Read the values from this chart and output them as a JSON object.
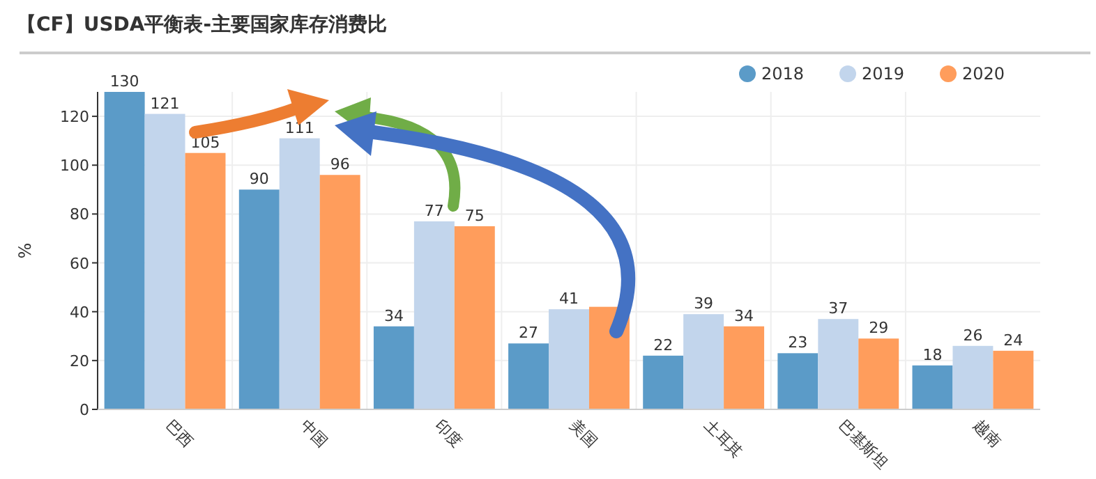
{
  "chart_data": {
    "type": "bar",
    "title": "【CF】USDA平衡表-主要国家库存消费比",
    "ylabel": "%",
    "categories": [
      "巴西",
      "中国",
      "印度",
      "美国",
      "土耳其",
      "巴基斯坦",
      "越南"
    ],
    "series": [
      {
        "name": "2018",
        "color": "#5b9bc8",
        "values": [
          130,
          90,
          34,
          27,
          22,
          23,
          18
        ]
      },
      {
        "name": "2019",
        "color": "#c2d5ec",
        "values": [
          121,
          111,
          77,
          41,
          39,
          37,
          26
        ]
      },
      {
        "name": "2020",
        "color": "#ff9d5c",
        "values": [
          105,
          96,
          75,
          42,
          34,
          29,
          24
        ],
        "value_labels": [
          "105",
          "96",
          "75",
          null,
          "34",
          "29",
          "24"
        ]
      }
    ],
    "ylim": [
      0,
      130
    ],
    "yticks": [
      0,
      20,
      40,
      60,
      80,
      100,
      120
    ],
    "grid": true,
    "legend": "top right",
    "data_labels": true
  }
}
